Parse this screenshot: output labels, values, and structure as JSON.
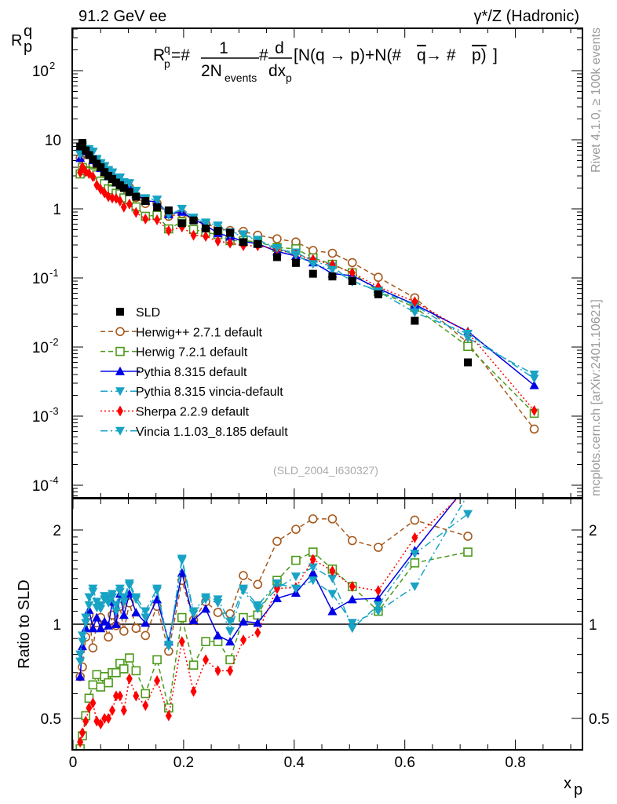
{
  "header": {
    "left": "91.2 GeV ee",
    "right": "γ*/Z (Hadronic)"
  },
  "side_text": {
    "top": "Rivet 4.1.0, ≥ 100k events",
    "bottom": "mcplots.cern.ch [arXiv:2401.10621]"
  },
  "formula": {
    "R": "R",
    "sup": "q",
    "sub": "p",
    "eq": "=#",
    "num": "1",
    "den": "2N",
    "den_sub": "events",
    "hash": "#",
    "dnum": "d",
    "dden": "dx",
    "dden_sub": "p",
    "bracket": "[N(q → p)+N(#",
    "qbar": "q",
    "arrow": " → #",
    "pbar": "p)",
    "close": "]"
  },
  "chart_data": {
    "type": "line",
    "title": "91.2 GeV ee",
    "ylabel": "R^q_p",
    "ylabel_sup": "q",
    "ylabel_sub": "p",
    "ylabel_base": "R",
    "xlabel": "x",
    "xlabel_sub": "p",
    "ratio_ylabel": "Ratio to SLD",
    "watermark": "(SLD_2004_I630327)",
    "xlim": [
      0,
      0.923
    ],
    "ylim": [
      6.5e-05,
      420
    ],
    "ratio_ylim": [
      0.397,
      2.52
    ],
    "yscale": "log",
    "x_ticks": [
      "0",
      "0.2",
      "0.4",
      "0.6",
      "0.8"
    ],
    "x_tick_values": [
      0,
      0.2,
      0.4,
      0.6,
      0.8
    ],
    "y_ticks": [
      "10^2",
      "10",
      "1",
      "10^-1",
      "10^-2",
      "10^-3",
      "10^-4"
    ],
    "y_tick_values": [
      100,
      10,
      1,
      0.1,
      0.01,
      0.001,
      0.0001
    ],
    "ratio_ticks": [
      "2",
      "1",
      "0.5"
    ],
    "ratio_tick_values": [
      2,
      1,
      0.5
    ],
    "legend_position": "lower-left",
    "x": [
      0.013,
      0.017,
      0.023,
      0.029,
      0.036,
      0.043,
      0.05,
      0.057,
      0.064,
      0.071,
      0.078,
      0.085,
      0.092,
      0.102,
      0.114,
      0.131,
      0.152,
      0.173,
      0.197,
      0.218,
      0.24,
      0.262,
      0.284,
      0.308,
      0.334,
      0.369,
      0.403,
      0.434,
      0.469,
      0.505,
      0.552,
      0.618,
      0.714,
      0.834
    ],
    "data": {
      "name": "SLD",
      "color": "#000000",
      "marker": "square-filled",
      "values": [
        8.0,
        9.0,
        7.0,
        6.0,
        5.2,
        4.5,
        4.0,
        3.4,
        3.0,
        2.7,
        2.4,
        2.2,
        2.0,
        1.75,
        1.5,
        1.3,
        1.05,
        0.95,
        0.62,
        0.68,
        0.52,
        0.48,
        0.45,
        0.33,
        0.31,
        0.2,
        0.165,
        0.115,
        0.105,
        0.09,
        0.058,
        0.024,
        0.006
      ]
    },
    "series": [
      {
        "name": "Herwig++ 2.7.1 default",
        "color": "#a6591c",
        "marker": "circle-open",
        "line": "dashed",
        "ratio": [
          0.68,
          0.73,
          0.91,
          1.07,
          0.84,
          1.01,
          1.05,
          0.99,
          0.91,
          1.07,
          0.99,
          1.14,
          0.95,
          1.17,
          0.97,
          0.92,
          1.14,
          0.82,
          1.38,
          1.03,
          1.18,
          1.09,
          1.08,
          1.43,
          1.34,
          1.84,
          2.01,
          2.17,
          2.17,
          1.85,
          1.76,
          2.15,
          1.91
        ],
        "last_value": 0.00065
      },
      {
        "name": "Herwig 7.2.1 default",
        "color": "#4c9a1a",
        "marker": "square-open",
        "line": "dashed",
        "ratio": [
          0.4,
          0.44,
          0.51,
          0.58,
          0.64,
          0.69,
          0.63,
          0.68,
          0.65,
          0.7,
          0.7,
          0.75,
          0.72,
          0.78,
          0.71,
          0.6,
          0.77,
          0.54,
          1.05,
          0.74,
          0.88,
          0.88,
          0.77,
          1.05,
          1.07,
          1.38,
          1.6,
          1.7,
          1.5,
          1.32,
          1.1,
          1.57,
          1.7
        ],
        "last_value": 0.0011
      },
      {
        "name": "Pythia 8.315 default",
        "color": "#0000e6",
        "marker": "triangle-up",
        "line": "solid",
        "ratio": [
          0.68,
          0.85,
          0.97,
          1.11,
          0.97,
          1.05,
          0.97,
          1.02,
          0.99,
          1.18,
          1.0,
          1.25,
          1.07,
          1.25,
          1.09,
          1.01,
          1.2,
          0.88,
          1.46,
          1.03,
          1.12,
          0.92,
          0.88,
          1.02,
          1.01,
          1.21,
          1.26,
          1.46,
          1.1,
          1.2,
          1.21,
          1.72,
          2.8
        ],
        "last_value": 0.0028
      },
      {
        "name": "Pythia 8.315 vincia-default",
        "color": "#1aa3c4",
        "marker": "triangle-down",
        "line": "dashdot",
        "ratio": [
          0.8,
          0.92,
          1.01,
          1.15,
          1.27,
          1.13,
          1.12,
          1.2,
          1.17,
          1.25,
          1.1,
          1.27,
          1.18,
          1.33,
          1.2,
          1.05,
          1.28,
          0.86,
          1.6,
          1.08,
          1.2,
          1.17,
          0.95,
          1.28,
          1.12,
          1.3,
          1.42,
          1.52,
          1.4,
          0.97,
          1.15,
          1.68,
          2.25
        ],
        "last_value": 0.004
      },
      {
        "name": "Sherpa 2.2.9 default",
        "color": "#ff0000",
        "marker": "diamond",
        "line": "dotted",
        "ratio": [
          0.42,
          0.45,
          0.49,
          0.54,
          0.56,
          0.49,
          0.48,
          0.5,
          0.5,
          0.53,
          0.59,
          0.59,
          0.53,
          0.67,
          0.59,
          0.55,
          0.66,
          0.51,
          0.88,
          0.61,
          0.77,
          0.71,
          0.71,
          0.89,
          0.94,
          1.3,
          1.31,
          1.61,
          1.48,
          1.32,
          1.28,
          1.89,
          2.7
        ],
        "last_value": 0.0012
      },
      {
        "name": "Vincia 1.1.03_8.185 default",
        "color": "#17a4c4",
        "marker": "triangle-down",
        "line": "dashdot",
        "ratio": [
          0.76,
          0.88,
          1.05,
          1.22,
          1.3,
          1.18,
          1.15,
          1.23,
          1.22,
          1.22,
          1.15,
          1.3,
          1.22,
          1.35,
          1.22,
          1.1,
          1.3,
          0.85,
          1.62,
          1.1,
          1.22,
          1.2,
          1.02,
          1.3,
          1.15,
          1.35,
          1.3,
          1.38,
          1.25,
          1.01,
          1.1,
          1.32,
          2.6
        ],
        "last_value": 0.0035
      }
    ]
  }
}
